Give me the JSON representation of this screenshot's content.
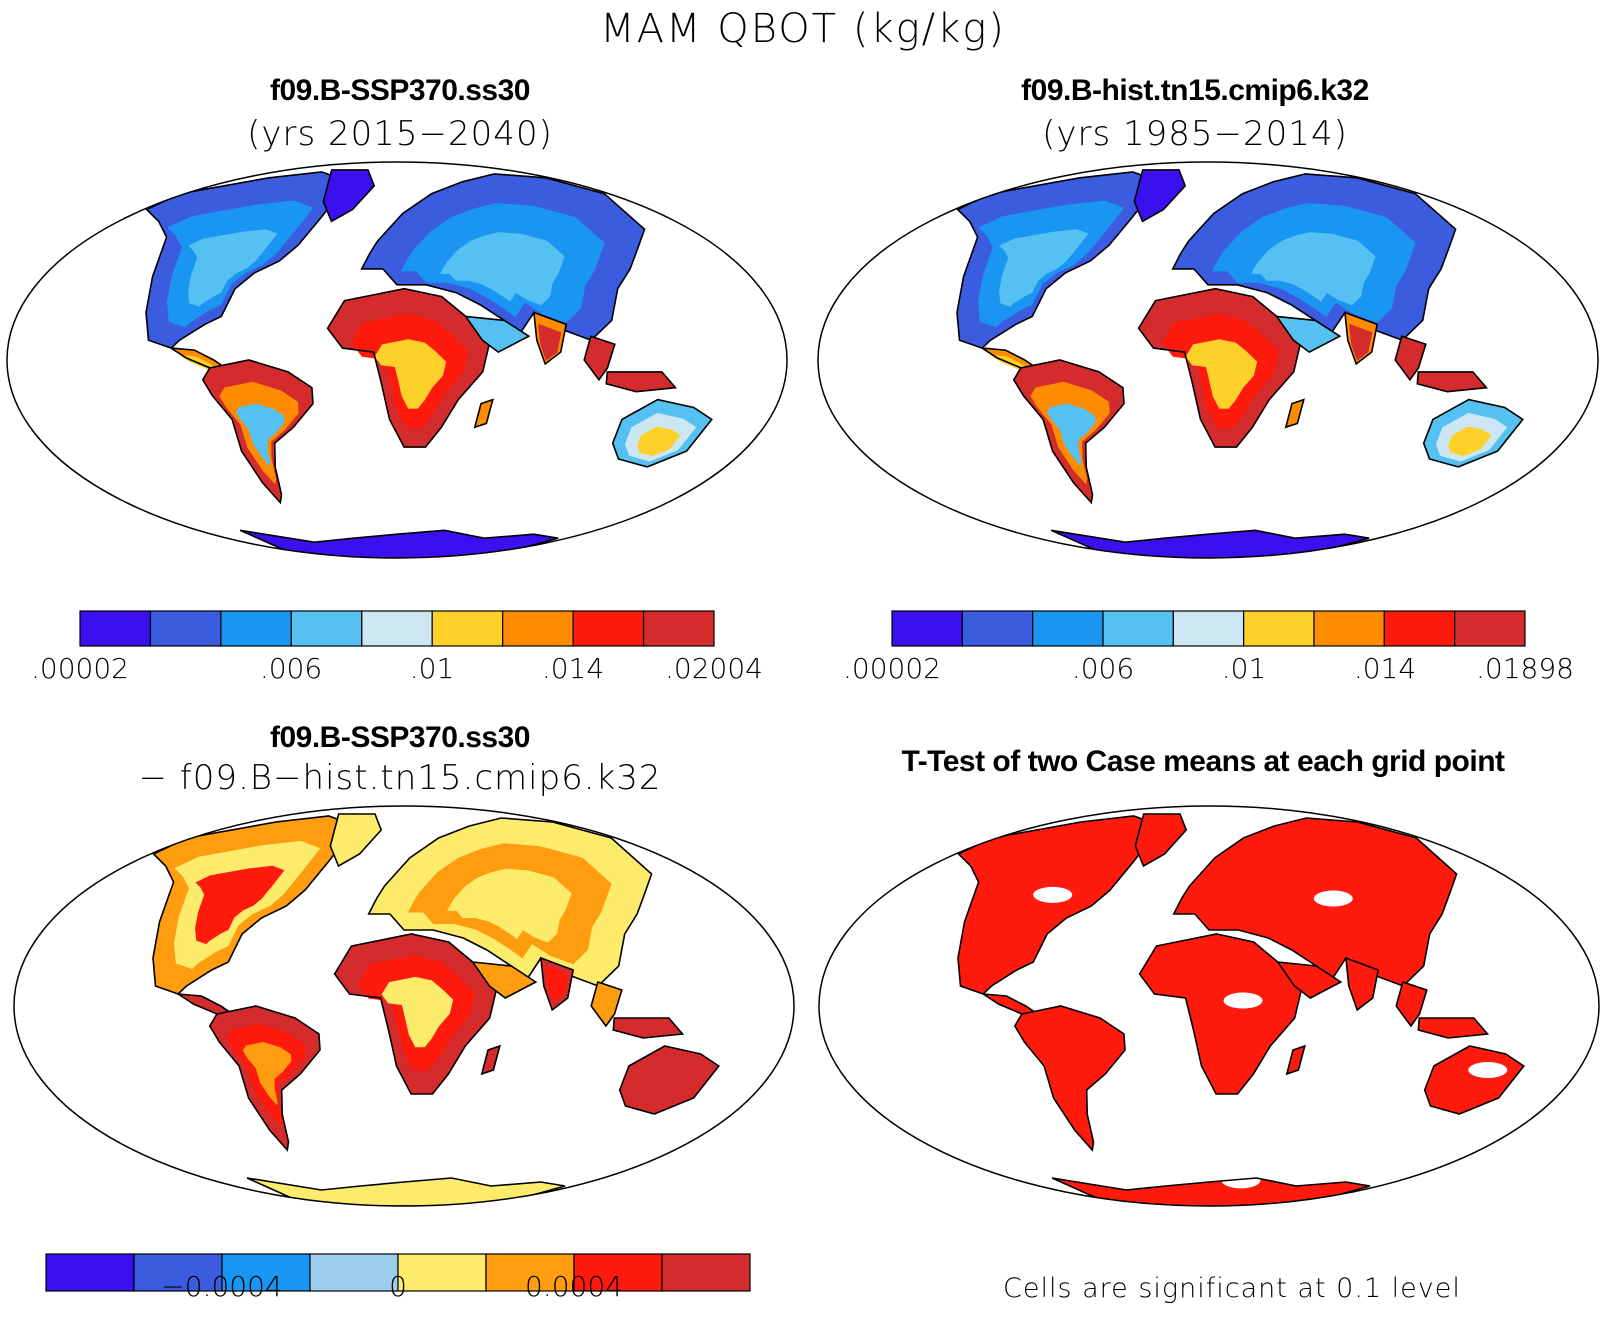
{
  "title": "MAM QBOT (kg/kg)",
  "panels": [
    {
      "id": "ssp370",
      "title": "f09.B-SSP370.ss30",
      "subtitle": "(yrs 2015−2040)",
      "palette": "abs",
      "colorbar": {
        "colors": [
          "#3a10ee",
          "#3c5ce0",
          "#1a96f2",
          "#55c0f2",
          "#cce6f4",
          "#fdd02a",
          "#ff8c00",
          "#ff1a0e",
          "#d42c2c"
        ],
        "labels": [
          ".00002",
          ".006",
          ".01",
          ".014",
          ".02004"
        ]
      }
    },
    {
      "id": "hist",
      "title": "f09.B-hist.tn15.cmip6.k32",
      "subtitle": "(yrs 1985−2014)",
      "palette": "abs",
      "colorbar": {
        "colors": [
          "#3a10ee",
          "#3c5ce0",
          "#1a96f2",
          "#55c0f2",
          "#cce6f4",
          "#fdd02a",
          "#ff8c00",
          "#ff1a0e",
          "#d42c2c"
        ],
        "labels": [
          ".00002",
          ".006",
          ".01",
          ".014",
          ".01898"
        ]
      }
    },
    {
      "id": "diff",
      "title": "f09.B-SSP370.ss30",
      "subtitle": "− f09.B−hist.tn15.cmip6.k32",
      "palette": "diff",
      "colorbar": {
        "colors": [
          "#3a10ee",
          "#3c5ce0",
          "#1a96f2",
          "#9ccfee",
          "#fdec6c",
          "#ff9c10",
          "#ff1a0e",
          "#d42c2c"
        ],
        "labels": [
          "−0.0004",
          "0",
          "0.0004"
        ]
      }
    },
    {
      "id": "ttest",
      "title": "T-Test of two Case means at each grid point",
      "subtitle": "",
      "palette": "sig",
      "note": "Cells are significant at 0.1 level"
    }
  ],
  "colors": {
    "land_sig": "#ff1a0e",
    "ocean": "#ffffff",
    "coast": "#000000"
  }
}
